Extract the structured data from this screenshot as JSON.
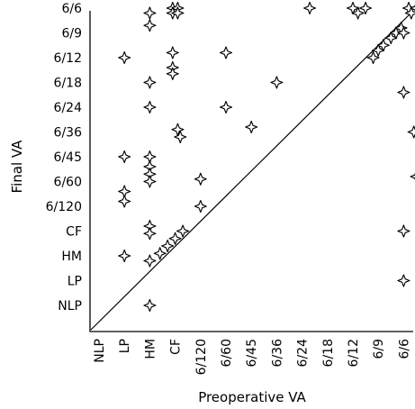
{
  "chart_data": {
    "type": "scatter",
    "xlabel": "Preoperative VA",
    "ylabel": "Final VA",
    "x_categories": [
      "NLP",
      "LP",
      "HM",
      "CF",
      "6/120",
      "6/60",
      "6/45",
      "6/36",
      "6/24",
      "6/18",
      "6/12",
      "6/9",
      "6/6"
    ],
    "y_categories": [
      "NLP",
      "LP",
      "HM",
      "CF",
      "6/120",
      "6/60",
      "6/45",
      "6/36",
      "6/24",
      "6/18",
      "6/12",
      "6/9",
      "6/6"
    ],
    "reference_line": "identity",
    "grid": false,
    "points": [
      {
        "x": 1.0,
        "y": 10.0
      },
      {
        "x": 1.0,
        "y": 6.0
      },
      {
        "x": 1.0,
        "y": 4.6
      },
      {
        "x": 1.0,
        "y": 4.2
      },
      {
        "x": 1.0,
        "y": 2.0
      },
      {
        "x": 2.0,
        "y": 11.8
      },
      {
        "x": 2.0,
        "y": 11.3
      },
      {
        "x": 2.0,
        "y": 9.0
      },
      {
        "x": 2.0,
        "y": 8.0
      },
      {
        "x": 2.0,
        "y": 6.0
      },
      {
        "x": 2.0,
        "y": 5.6
      },
      {
        "x": 2.0,
        "y": 5.3
      },
      {
        "x": 2.0,
        "y": 5.0
      },
      {
        "x": 2.0,
        "y": 3.2
      },
      {
        "x": 2.0,
        "y": 2.9
      },
      {
        "x": 2.0,
        "y": 1.8
      },
      {
        "x": 2.0,
        "y": 0.0
      },
      {
        "x": 2.4,
        "y": 2.1
      },
      {
        "x": 2.7,
        "y": 2.4
      },
      {
        "x": 3.0,
        "y": 2.7
      },
      {
        "x": 3.3,
        "y": 3.0
      },
      {
        "x": 2.9,
        "y": 12.0
      },
      {
        "x": 3.1,
        "y": 12.0
      },
      {
        "x": 2.9,
        "y": 11.8
      },
      {
        "x": 3.1,
        "y": 11.8
      },
      {
        "x": 2.9,
        "y": 10.2
      },
      {
        "x": 2.9,
        "y": 9.6
      },
      {
        "x": 2.9,
        "y": 9.35
      },
      {
        "x": 3.1,
        "y": 7.1
      },
      {
        "x": 3.2,
        "y": 6.8
      },
      {
        "x": 4.0,
        "y": 5.1
      },
      {
        "x": 4.0,
        "y": 4.0
      },
      {
        "x": 5.0,
        "y": 10.2
      },
      {
        "x": 5.0,
        "y": 8.0
      },
      {
        "x": 6.0,
        "y": 7.2
      },
      {
        "x": 7.0,
        "y": 9.0
      },
      {
        "x": 8.3,
        "y": 12.0
      },
      {
        "x": 10.0,
        "y": 12.0
      },
      {
        "x": 10.2,
        "y": 11.8
      },
      {
        "x": 10.5,
        "y": 12.0
      },
      {
        "x": 10.8,
        "y": 10.0
      },
      {
        "x": 11.0,
        "y": 10.3
      },
      {
        "x": 11.2,
        "y": 10.5
      },
      {
        "x": 11.5,
        "y": 10.8
      },
      {
        "x": 11.7,
        "y": 11.0
      },
      {
        "x": 11.9,
        "y": 11.2
      },
      {
        "x": 12.0,
        "y": 11.0
      },
      {
        "x": 12.2,
        "y": 12.0
      },
      {
        "x": 12.5,
        "y": 12.0
      },
      {
        "x": 12.8,
        "y": 12.0
      },
      {
        "x": 12.3,
        "y": 11.8
      },
      {
        "x": 12.7,
        "y": 11.8
      },
      {
        "x": 12.0,
        "y": 8.6
      },
      {
        "x": 12.4,
        "y": 7.0
      },
      {
        "x": 12.5,
        "y": 5.2
      },
      {
        "x": 13.0,
        "y": 4.4
      },
      {
        "x": 13.0,
        "y": 9.8
      },
      {
        "x": 12.0,
        "y": 3.0
      },
      {
        "x": 12.0,
        "y": 1.0
      }
    ]
  }
}
